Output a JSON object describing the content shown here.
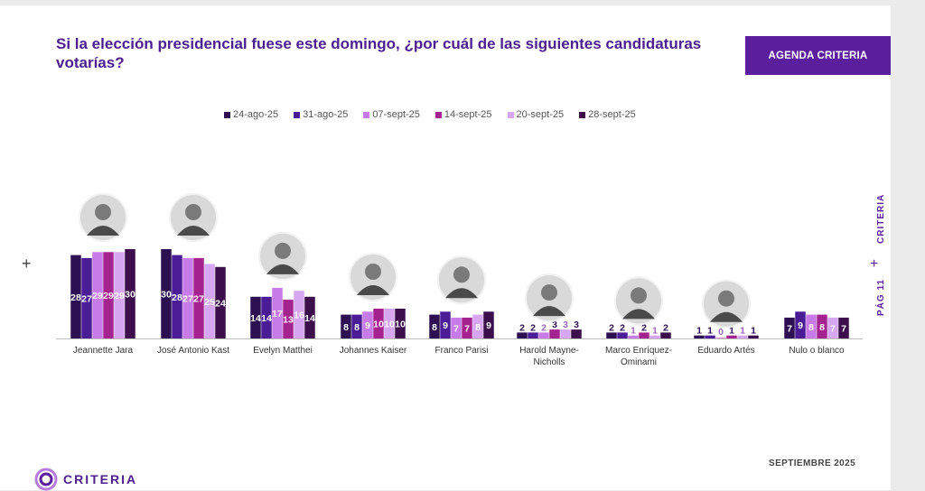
{
  "header": {
    "title": "Si la elección presidencial fuese este domingo, ¿por cuál de las siguientes candidaturas votarías?",
    "agenda_button": "AGENDA CRITERIA"
  },
  "side": {
    "brand": "CRITERIA",
    "page": "PÁG 11"
  },
  "footer": {
    "date": "SEPTIEMBRE 2025",
    "logo_text": "CRITERIA"
  },
  "chart_data": {
    "type": "bar",
    "title": "",
    "xlabel": "",
    "ylabel": "",
    "ylim": [
      0,
      32
    ],
    "legend_position": "top",
    "categories": [
      "Jeannette Jara",
      "José Antonio Kast",
      "Evelyn Matthei",
      "Johannes Kaiser",
      "Franco Parisi",
      "Harold Mayne-Nicholls",
      "Marco Enríquez-Ominami",
      "Eduardo Artés",
      "Nulo o blanco"
    ],
    "category_label_lines": [
      [
        "Jeannette Jara"
      ],
      [
        "José Antonio Kast"
      ],
      [
        "Evelyn Matthei"
      ],
      [
        "Johannes Kaiser"
      ],
      [
        "Franco Parisi"
      ],
      [
        "Harold Mayne-",
        "Nicholls"
      ],
      [
        "Marco Enríquez-",
        "Ominami"
      ],
      [
        "Eduardo Artés"
      ],
      [
        "Nulo o blanco"
      ]
    ],
    "series": [
      {
        "name": "24-ago-25",
        "color": "#2d1052",
        "values": [
          28,
          30,
          14,
          8,
          8,
          2,
          2,
          1,
          7
        ]
      },
      {
        "name": "31-ago-25",
        "color": "#4a1d96",
        "values": [
          27,
          28,
          14,
          8,
          9,
          2,
          2,
          1,
          9
        ]
      },
      {
        "name": "07-sept-25",
        "color": "#c77be8",
        "values": [
          29,
          27,
          17,
          9,
          7,
          2,
          1,
          0,
          8
        ]
      },
      {
        "name": "14-sept-25",
        "color": "#a5238f",
        "values": [
          29,
          27,
          13,
          10,
          7,
          3,
          2,
          1,
          8
        ]
      },
      {
        "name": "20-sept-25",
        "color": "#d6a6f0",
        "values": [
          29,
          25,
          16,
          10,
          8,
          3,
          1,
          1,
          7
        ]
      },
      {
        "name": "28-sept-25",
        "color": "#3c0f4c",
        "values": [
          30,
          24,
          14,
          10,
          9,
          3,
          2,
          1,
          7
        ]
      }
    ]
  }
}
